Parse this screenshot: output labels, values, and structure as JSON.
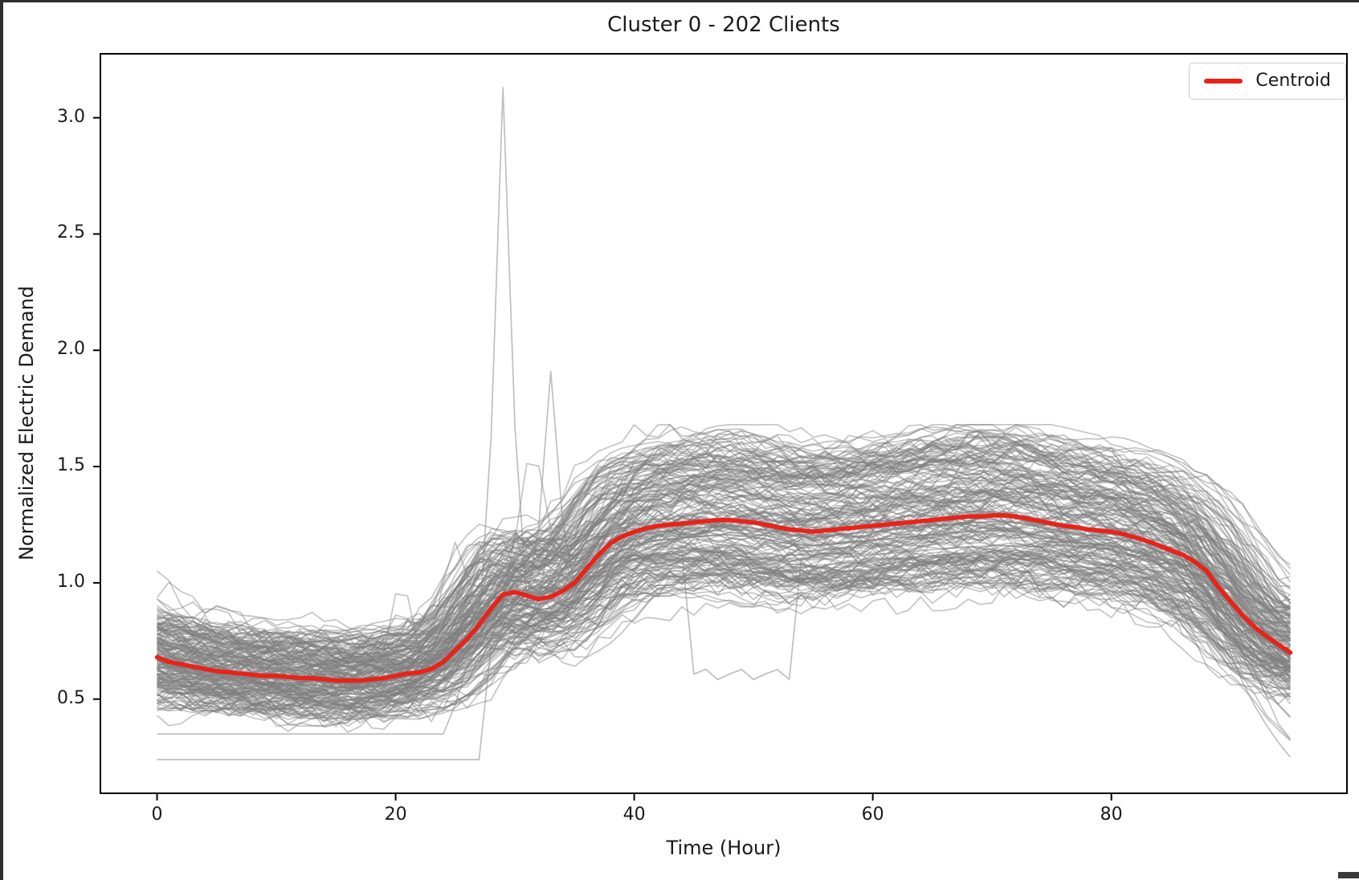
{
  "window": {
    "background": "#ffffff",
    "chrome_color": "#2e2e2e"
  },
  "chart_data": {
    "type": "line",
    "title": "Cluster 0 - 202 Clients",
    "xlabel": "Time (Hour)",
    "ylabel": "Normalized Electric Demand",
    "client_count": 202,
    "grid": false,
    "xlim": [
      -4.75,
      99.75
    ],
    "ylim": [
      0.095,
      3.275
    ],
    "x_ticks": [
      0,
      20,
      40,
      60,
      80
    ],
    "x_tick_labels": [
      "0",
      "20",
      "40",
      "60",
      "80"
    ],
    "y_ticks": [
      0.5,
      1.0,
      1.5,
      2.0,
      2.5,
      3.0
    ],
    "y_tick_labels": [
      "0.5",
      "1.0",
      "1.5",
      "2.0",
      "2.5",
      "3.0"
    ],
    "x_hours": {
      "start": 0,
      "end": 95,
      "step": 1
    },
    "legend": {
      "position": "upper right",
      "entries": [
        {
          "label": "Centroid",
          "color": "#e8231a"
        }
      ]
    },
    "series": [
      {
        "name": "Centroid",
        "color": "#e8231a",
        "width": 5.5,
        "values": [
          0.68,
          0.66,
          0.65,
          0.64,
          0.63,
          0.62,
          0.615,
          0.61,
          0.605,
          0.6,
          0.6,
          0.595,
          0.59,
          0.59,
          0.585,
          0.58,
          0.58,
          0.58,
          0.585,
          0.59,
          0.6,
          0.61,
          0.615,
          0.63,
          0.66,
          0.71,
          0.76,
          0.82,
          0.89,
          0.95,
          0.96,
          0.945,
          0.93,
          0.94,
          0.965,
          1.0,
          1.06,
          1.12,
          1.17,
          1.2,
          1.22,
          1.235,
          1.245,
          1.25,
          1.255,
          1.26,
          1.265,
          1.27,
          1.27,
          1.265,
          1.26,
          1.25,
          1.24,
          1.23,
          1.225,
          1.22,
          1.225,
          1.23,
          1.235,
          1.24,
          1.245,
          1.25,
          1.255,
          1.26,
          1.265,
          1.27,
          1.275,
          1.28,
          1.285,
          1.285,
          1.29,
          1.29,
          1.285,
          1.275,
          1.265,
          1.255,
          1.245,
          1.24,
          1.23,
          1.225,
          1.22,
          1.21,
          1.195,
          1.18,
          1.16,
          1.14,
          1.12,
          1.09,
          1.05,
          0.98,
          0.92,
          0.86,
          0.81,
          0.77,
          0.735,
          0.7
        ]
      }
    ],
    "background_clients": {
      "count": 202,
      "color": "#7f7f7f",
      "opacity": 0.45,
      "width": 1.7,
      "seed": 1337,
      "scale_range": [
        0.78,
        1.28
      ],
      "offset_range": [
        -0.05,
        0.05
      ],
      "hour_shift_range": [
        -3,
        3
      ],
      "jitter": 0.035,
      "extra_spikes": {
        "hour_range": [
          20,
          35
        ],
        "amp_range": [
          0.15,
          0.45
        ]
      },
      "end_sag": {
        "max_drop": 0.4
      },
      "start_boost": {
        "max": 0.3
      },
      "outliers": [
        {
          "name": "tall-spike",
          "peak_hour": 29,
          "peak_value": 3.13
        },
        {
          "name": "mid-spike",
          "peak_hour": 33,
          "peak_value": 1.91
        },
        {
          "name": "flat-low-1",
          "level": 0.24,
          "rise_hour": 27,
          "after_scale": 0.82
        },
        {
          "name": "flat-low-2",
          "level": 0.35,
          "rise_hour": 24.5,
          "after_scale": 0.85
        },
        {
          "name": "flat-low-3",
          "level": 0.46,
          "rise_hour": 19,
          "after_scale": 0.88
        },
        {
          "name": "mid-dip",
          "dip_start": 44,
          "dip_end": 54,
          "dip_value": 0.6
        },
        {
          "name": "end-drop-1",
          "drop_start": 88,
          "end_value": 0.25
        },
        {
          "name": "end-drop-2",
          "drop_start": 90,
          "end_value": 0.42
        }
      ]
    }
  }
}
